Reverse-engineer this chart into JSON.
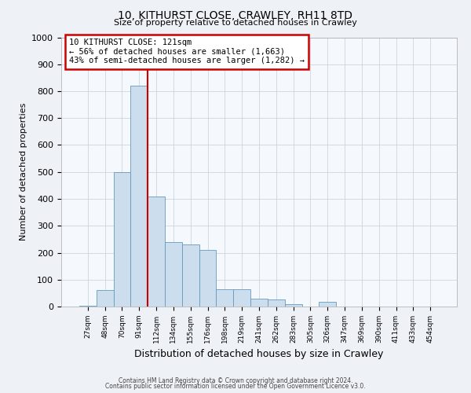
{
  "title1": "10, KITHURST CLOSE, CRAWLEY, RH11 8TD",
  "title2": "Size of property relative to detached houses in Crawley",
  "xlabel": "Distribution of detached houses by size in Crawley",
  "ylabel": "Number of detached properties",
  "bar_labels": [
    "27sqm",
    "48sqm",
    "70sqm",
    "91sqm",
    "112sqm",
    "134sqm",
    "155sqm",
    "176sqm",
    "198sqm",
    "219sqm",
    "241sqm",
    "262sqm",
    "283sqm",
    "305sqm",
    "326sqm",
    "347sqm",
    "369sqm",
    "390sqm",
    "411sqm",
    "433sqm",
    "454sqm"
  ],
  "bar_values": [
    2,
    60,
    500,
    820,
    410,
    240,
    230,
    210,
    65,
    65,
    30,
    25,
    10,
    0,
    18,
    0,
    0,
    0,
    0,
    0,
    0
  ],
  "bar_color": "#ccdded",
  "bar_edge_color": "#6699bb",
  "vline_color": "#cc0000",
  "annotation_text": "10 KITHURST CLOSE: 121sqm\n← 56% of detached houses are smaller (1,663)\n43% of semi-detached houses are larger (1,282) →",
  "annotation_box_color": "#cc0000",
  "ylim": [
    0,
    1000
  ],
  "yticks": [
    0,
    100,
    200,
    300,
    400,
    500,
    600,
    700,
    800,
    900,
    1000
  ],
  "footer1": "Contains HM Land Registry data © Crown copyright and database right 2024.",
  "footer2": "Contains public sector information licensed under the Open Government Licence v3.0.",
  "bg_color": "#eef2f7",
  "plot_bg_color": "#f5f8fc",
  "grid_color": "#c5cfd8"
}
